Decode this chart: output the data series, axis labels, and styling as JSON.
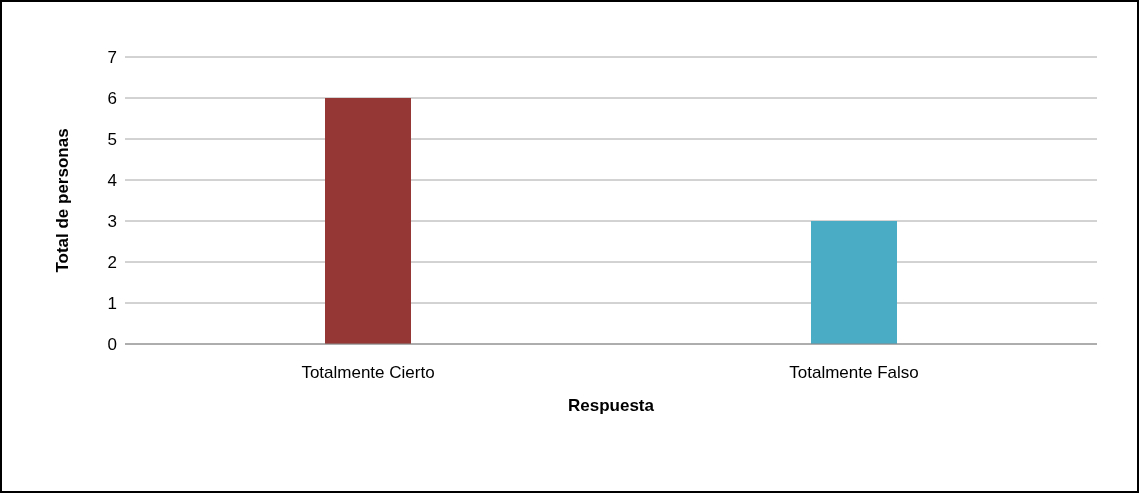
{
  "chart_data": {
    "type": "bar",
    "xlabel": "Respuesta",
    "ylabel": "Total de personas",
    "categories": [
      "Totalmente Cierto",
      "Totalmente Falso"
    ],
    "values": [
      6,
      3
    ],
    "colors": [
      "#953735",
      "#4bacc6"
    ],
    "ylim": [
      0,
      7
    ],
    "yticks": [
      0,
      1,
      2,
      3,
      4,
      5,
      6,
      7
    ],
    "grid": "y",
    "legend": false
  }
}
